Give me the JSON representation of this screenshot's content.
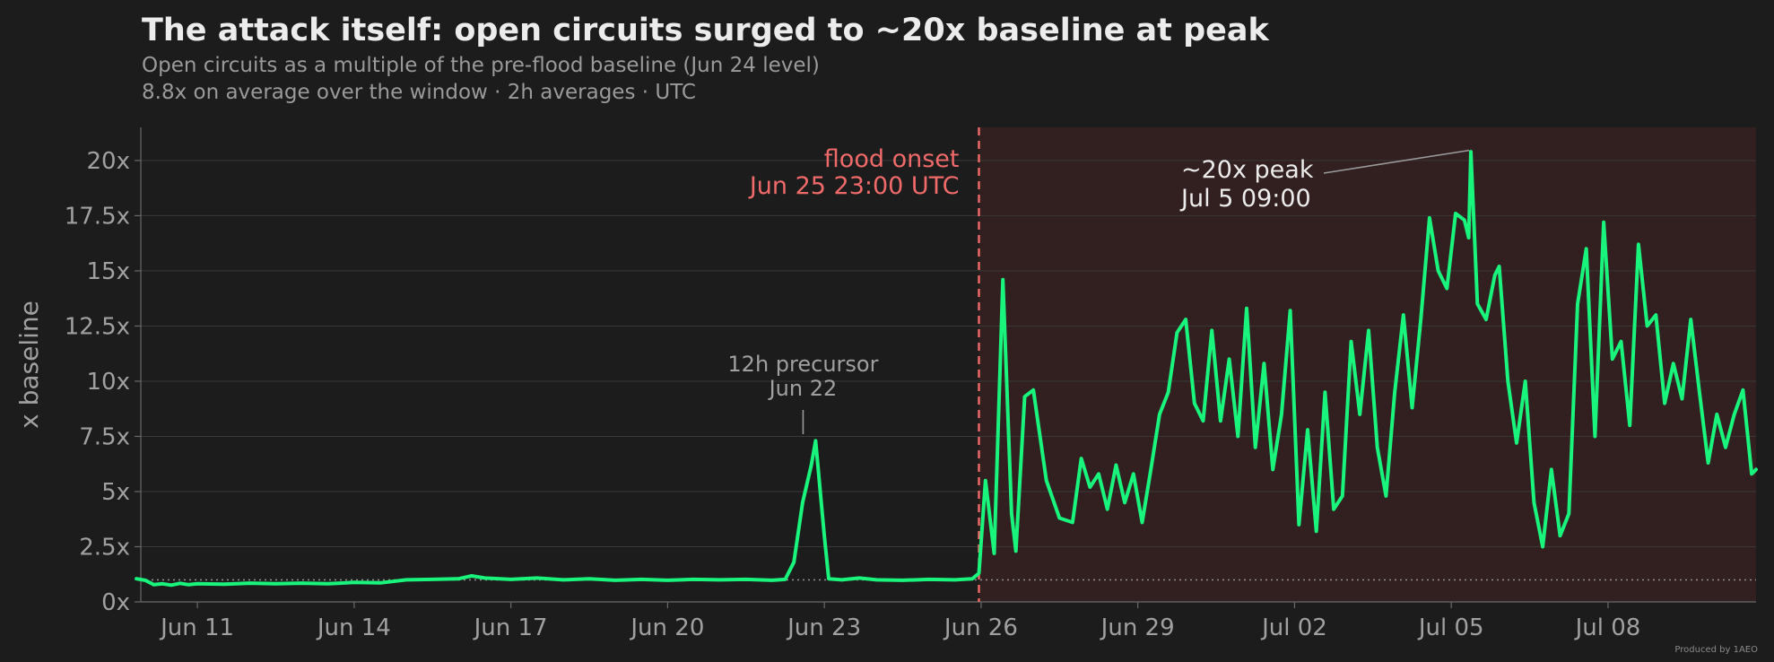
{
  "title": "The attack itself: open circuits surged to ~20x baseline at peak",
  "subtitle_line1": "Open circuits as a multiple of the pre-flood baseline (Jun 24 level)",
  "subtitle_line2": "8.8x on average over the window · 2h averages · UTC",
  "credit": "Produced by 1AEO",
  "colors": {
    "background": "#1c1c1c",
    "line": "#19f47c",
    "onset": "#f06a6a",
    "shade": "#3a2020",
    "grid": "#383838",
    "axis_text": "#a0a0a0",
    "annotation": "#ececec"
  },
  "chart_data": {
    "type": "line",
    "ylabel": "x baseline",
    "ylim": [
      0,
      21.5
    ],
    "xlim": [
      "2025-06-09 22:00",
      "2025-07-10 20:00"
    ],
    "yticks": [
      {
        "value": 0,
        "label": "0x"
      },
      {
        "value": 2.5,
        "label": "2.5x"
      },
      {
        "value": 5,
        "label": "5x"
      },
      {
        "value": 7.5,
        "label": "7.5x"
      },
      {
        "value": 10,
        "label": "10x"
      },
      {
        "value": 12.5,
        "label": "12.5x"
      },
      {
        "value": 15,
        "label": "15x"
      },
      {
        "value": 17.5,
        "label": "17.5x"
      },
      {
        "value": 20,
        "label": "20x"
      }
    ],
    "xticks": [
      {
        "value": "2025-06-11 00:00",
        "label": "Jun 11"
      },
      {
        "value": "2025-06-14 00:00",
        "label": "Jun 14"
      },
      {
        "value": "2025-06-17 00:00",
        "label": "Jun 17"
      },
      {
        "value": "2025-06-20 00:00",
        "label": "Jun 20"
      },
      {
        "value": "2025-06-23 00:00",
        "label": "Jun 23"
      },
      {
        "value": "2025-06-26 00:00",
        "label": "Jun 26"
      },
      {
        "value": "2025-06-29 00:00",
        "label": "Jun 29"
      },
      {
        "value": "2025-07-02 00:00",
        "label": "Jul 02"
      },
      {
        "value": "2025-07-05 00:00",
        "label": "Jul 05"
      },
      {
        "value": "2025-07-08 00:00",
        "label": "Jul 08"
      }
    ],
    "baseline": 1,
    "flood_onset": {
      "x": "2025-06-25 23:00",
      "label_line1": "flood onset",
      "label_line2": "Jun 25 23:00 UTC"
    },
    "shaded_region": [
      "2025-06-25 23:00",
      "2025-07-10 20:00"
    ],
    "annotations": [
      {
        "text_line1": "12h precursor",
        "text_line2": "Jun 22",
        "x": "2025-06-22 20:00",
        "y": 7.3
      },
      {
        "text_line1": "~20x peak",
        "text_line2": "Jul 5 09:00",
        "x": "2025-07-05 09:00",
        "y": 20.5
      }
    ],
    "series": [
      {
        "points": [
          [
            "2025-06-09 20:00",
            1.05
          ],
          [
            "2025-06-10 00:00",
            0.98
          ],
          [
            "2025-06-10 04:00",
            0.78
          ],
          [
            "2025-06-10 08:00",
            0.82
          ],
          [
            "2025-06-10 12:00",
            0.76
          ],
          [
            "2025-06-10 16:00",
            0.84
          ],
          [
            "2025-06-10 20:00",
            0.78
          ],
          [
            "2025-06-11 00:00",
            0.82
          ],
          [
            "2025-06-11 12:00",
            0.8
          ],
          [
            "2025-06-12 00:00",
            0.85
          ],
          [
            "2025-06-12 12:00",
            0.82
          ],
          [
            "2025-06-13 00:00",
            0.85
          ],
          [
            "2025-06-13 12:00",
            0.82
          ],
          [
            "2025-06-14 00:00",
            0.88
          ],
          [
            "2025-06-14 12:00",
            0.86
          ],
          [
            "2025-06-15 00:00",
            1.0
          ],
          [
            "2025-06-15 12:00",
            1.02
          ],
          [
            "2025-06-16 00:00",
            1.05
          ],
          [
            "2025-06-16 06:00",
            1.18
          ],
          [
            "2025-06-16 12:00",
            1.08
          ],
          [
            "2025-06-17 00:00",
            1.02
          ],
          [
            "2025-06-17 12:00",
            1.08
          ],
          [
            "2025-06-18 00:00",
            1.0
          ],
          [
            "2025-06-18 12:00",
            1.05
          ],
          [
            "2025-06-19 00:00",
            0.98
          ],
          [
            "2025-06-19 12:00",
            1.02
          ],
          [
            "2025-06-20 00:00",
            0.98
          ],
          [
            "2025-06-20 12:00",
            1.02
          ],
          [
            "2025-06-21 00:00",
            1.0
          ],
          [
            "2025-06-21 12:00",
            1.02
          ],
          [
            "2025-06-22 00:00",
            0.98
          ],
          [
            "2025-06-22 06:00",
            1.02
          ],
          [
            "2025-06-22 10:00",
            1.8
          ],
          [
            "2025-06-22 14:00",
            4.5
          ],
          [
            "2025-06-22 18:00",
            6.2
          ],
          [
            "2025-06-22 20:00",
            7.3
          ],
          [
            "2025-06-23 00:00",
            3.0
          ],
          [
            "2025-06-23 02:00",
            1.05
          ],
          [
            "2025-06-23 08:00",
            1.0
          ],
          [
            "2025-06-23 16:00",
            1.08
          ],
          [
            "2025-06-24 00:00",
            1.0
          ],
          [
            "2025-06-24 12:00",
            0.98
          ],
          [
            "2025-06-25 00:00",
            1.02
          ],
          [
            "2025-06-25 12:00",
            1.0
          ],
          [
            "2025-06-25 20:00",
            1.05
          ],
          [
            "2025-06-25 23:00",
            1.3
          ],
          [
            "2025-06-26 02:00",
            5.5
          ],
          [
            "2025-06-26 06:00",
            2.2
          ],
          [
            "2025-06-26 10:00",
            14.6
          ],
          [
            "2025-06-26 14:00",
            4.0
          ],
          [
            "2025-06-26 16:00",
            2.3
          ],
          [
            "2025-06-26 20:00",
            9.3
          ],
          [
            "2025-06-27 00:00",
            9.6
          ],
          [
            "2025-06-27 06:00",
            5.5
          ],
          [
            "2025-06-27 12:00",
            3.8
          ],
          [
            "2025-06-27 18:00",
            3.6
          ],
          [
            "2025-06-27 22:00",
            6.5
          ],
          [
            "2025-06-28 02:00",
            5.2
          ],
          [
            "2025-06-28 06:00",
            5.8
          ],
          [
            "2025-06-28 10:00",
            4.2
          ],
          [
            "2025-06-28 14:00",
            6.2
          ],
          [
            "2025-06-28 18:00",
            4.5
          ],
          [
            "2025-06-28 22:00",
            5.8
          ],
          [
            "2025-06-29 02:00",
            3.6
          ],
          [
            "2025-06-29 06:00",
            6.0
          ],
          [
            "2025-06-29 10:00",
            8.5
          ],
          [
            "2025-06-29 14:00",
            9.5
          ],
          [
            "2025-06-29 18:00",
            12.2
          ],
          [
            "2025-06-29 22:00",
            12.8
          ],
          [
            "2025-06-30 02:00",
            9.0
          ],
          [
            "2025-06-30 06:00",
            8.2
          ],
          [
            "2025-06-30 10:00",
            12.3
          ],
          [
            "2025-06-30 14:00",
            8.2
          ],
          [
            "2025-06-30 18:00",
            11.0
          ],
          [
            "2025-06-30 22:00",
            7.5
          ],
          [
            "2025-07-01 02:00",
            13.3
          ],
          [
            "2025-07-01 06:00",
            7.0
          ],
          [
            "2025-07-01 10:00",
            10.8
          ],
          [
            "2025-07-01 14:00",
            6.0
          ],
          [
            "2025-07-01 18:00",
            8.5
          ],
          [
            "2025-07-01 22:00",
            13.2
          ],
          [
            "2025-07-02 02:00",
            3.5
          ],
          [
            "2025-07-02 06:00",
            7.8
          ],
          [
            "2025-07-02 10:00",
            3.2
          ],
          [
            "2025-07-02 14:00",
            9.5
          ],
          [
            "2025-07-02 18:00",
            4.2
          ],
          [
            "2025-07-02 22:00",
            4.8
          ],
          [
            "2025-07-03 02:00",
            11.8
          ],
          [
            "2025-07-03 06:00",
            8.5
          ],
          [
            "2025-07-03 10:00",
            12.3
          ],
          [
            "2025-07-03 14:00",
            7.0
          ],
          [
            "2025-07-03 18:00",
            4.8
          ],
          [
            "2025-07-03 22:00",
            9.5
          ],
          [
            "2025-07-04 02:00",
            13.0
          ],
          [
            "2025-07-04 06:00",
            8.8
          ],
          [
            "2025-07-04 10:00",
            12.8
          ],
          [
            "2025-07-04 14:00",
            17.4
          ],
          [
            "2025-07-04 18:00",
            15.0
          ],
          [
            "2025-07-04 22:00",
            14.2
          ],
          [
            "2025-07-05 02:00",
            17.6
          ],
          [
            "2025-07-05 06:00",
            17.3
          ],
          [
            "2025-07-05 08:00",
            16.5
          ],
          [
            "2025-07-05 09:00",
            20.4
          ],
          [
            "2025-07-05 12:00",
            13.5
          ],
          [
            "2025-07-05 16:00",
            12.8
          ],
          [
            "2025-07-05 20:00",
            14.8
          ],
          [
            "2025-07-05 22:00",
            15.2
          ],
          [
            "2025-07-06 02:00",
            10.0
          ],
          [
            "2025-07-06 06:00",
            7.2
          ],
          [
            "2025-07-06 10:00",
            10.0
          ],
          [
            "2025-07-06 14:00",
            4.5
          ],
          [
            "2025-07-06 18:00",
            2.5
          ],
          [
            "2025-07-06 22:00",
            6.0
          ],
          [
            "2025-07-07 02:00",
            3.0
          ],
          [
            "2025-07-07 06:00",
            4.0
          ],
          [
            "2025-07-07 10:00",
            13.5
          ],
          [
            "2025-07-07 14:00",
            16.0
          ],
          [
            "2025-07-07 18:00",
            7.5
          ],
          [
            "2025-07-07 22:00",
            17.2
          ],
          [
            "2025-07-08 02:00",
            11.0
          ],
          [
            "2025-07-08 06:00",
            11.8
          ],
          [
            "2025-07-08 10:00",
            8.0
          ],
          [
            "2025-07-08 14:00",
            16.2
          ],
          [
            "2025-07-08 18:00",
            12.5
          ],
          [
            "2025-07-08 22:00",
            13.0
          ],
          [
            "2025-07-09 02:00",
            9.0
          ],
          [
            "2025-07-09 06:00",
            10.8
          ],
          [
            "2025-07-09 10:00",
            9.2
          ],
          [
            "2025-07-09 14:00",
            12.8
          ],
          [
            "2025-07-09 18:00",
            9.5
          ],
          [
            "2025-07-09 22:00",
            6.3
          ],
          [
            "2025-07-10 02:00",
            8.5
          ],
          [
            "2025-07-10 06:00",
            7.0
          ],
          [
            "2025-07-10 10:00",
            8.5
          ],
          [
            "2025-07-10 14:00",
            9.6
          ],
          [
            "2025-07-10 18:00",
            5.8
          ],
          [
            "2025-07-10 20:00",
            6.0
          ]
        ]
      }
    ]
  }
}
